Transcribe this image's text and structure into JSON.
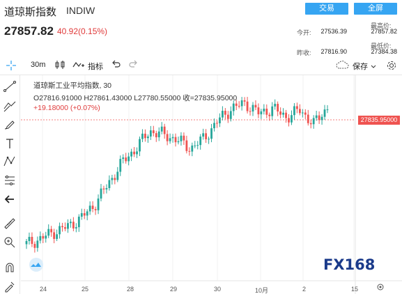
{
  "header": {
    "title": "道琼斯指数",
    "code": "INDIW",
    "btn_trade": "交易",
    "btn_fullscreen": "全屏",
    "price": "27857.82",
    "change": "40.92(0.15%)",
    "stats": {
      "high_label": "最高价:",
      "high_value": "27857.82",
      "open_label": "今开:",
      "open_value": "27536.39",
      "low_label": "最低价:",
      "low_value": "27384.38",
      "prev_label": "昨收:",
      "prev_value": "27816.90"
    }
  },
  "toolbar": {
    "interval": "30m",
    "indicators_label": "指标",
    "save_label": "保存"
  },
  "legend": {
    "name": "道琼斯工业平均指数, 30",
    "ohlc": "O27816.91000  H27861.43000  L27780.55000  收=27835.95000",
    "change": "+19.18000 (+0.07%)"
  },
  "price_label": "27835.95000",
  "x_axis": [
    "24",
    "25",
    "28",
    "29",
    "30",
    "10月",
    "2",
    "15"
  ],
  "colors": {
    "up": "#26a69a",
    "down": "#ef5350",
    "accent": "#36a5f2"
  },
  "chart_data": {
    "type": "candlestick",
    "last_price": 27835.95,
    "candles_close_trend": [
      27050,
      27080,
      27120,
      27150,
      27200,
      27280,
      27400,
      27520,
      27600,
      27700,
      27680,
      27650,
      27600,
      27660,
      27760,
      27830,
      27860,
      27800,
      27830,
      27780,
      27820,
      27740,
      27836
    ]
  },
  "logo_text": "FX168"
}
